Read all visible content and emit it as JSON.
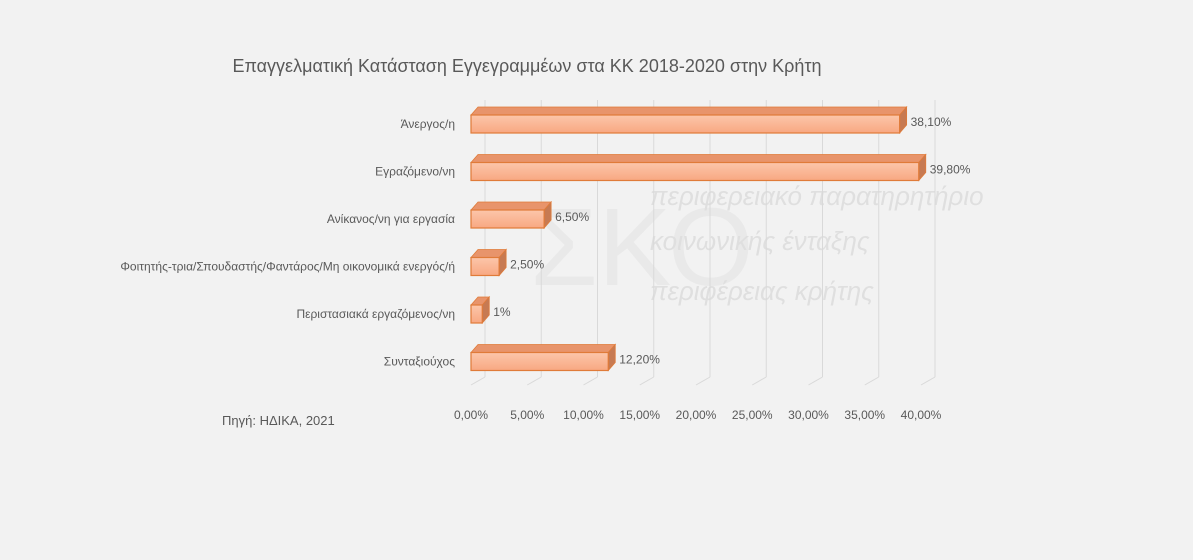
{
  "chart_data": {
    "type": "bar",
    "orientation": "horizontal",
    "title": "Επαγγελματική Κατάσταση Εγγεγραμμέων στα ΚΚ 2018-2020 στην Κρήτη",
    "categories": [
      "Άνεργος/η",
      "Εγραζόμενο/νη",
      "Ανίκανος/νη για εργασία",
      "Φοιτητής-τρια/Σπουδαστής/Φαντάρος/Μη οικονομικά ενεργός/ή",
      "Περιστασιακά εργαζόμενος/νη",
      "Συνταξιούχος"
    ],
    "values": [
      38.1,
      39.8,
      6.5,
      2.5,
      1,
      12.2
    ],
    "data_labels": [
      "38,10%",
      "39,80%",
      "6,50%",
      "2,50%",
      "1%",
      "12,20%"
    ],
    "x_ticks": [
      "0,00%",
      "5,00%",
      "10,00%",
      "15,00%",
      "20,00%",
      "25,00%",
      "30,00%",
      "35,00%",
      "40,00%"
    ],
    "xlim": [
      0,
      40
    ],
    "xlabel": "",
    "ylabel": "",
    "grid": true,
    "legend": "none",
    "bar_color": "#f8a882",
    "bar_edge_color": "#e07b39"
  },
  "source_note": "Πηγή: ΗΔΙΚΑ, 2021",
  "watermark": {
    "logo_text": "ΣΚΟ",
    "lines": [
      "περιφερειακό παρατηρητήριο",
      "κοινωνικής ένταξης",
      "περιφέρειας κρήτης"
    ]
  }
}
